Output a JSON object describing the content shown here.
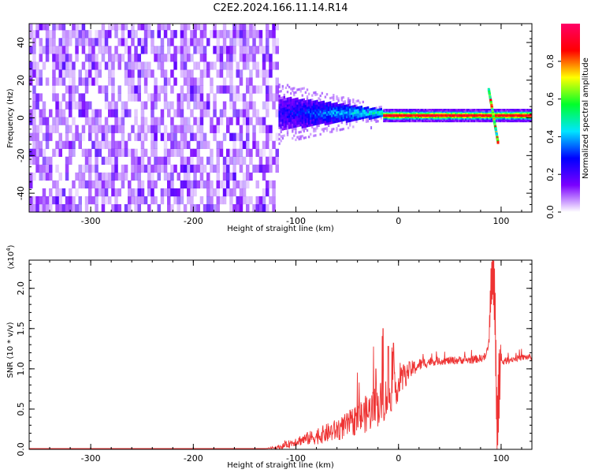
{
  "title": "C2E2.2024.166.11.14.R14",
  "chart_data": [
    {
      "type": "heatmap",
      "xlabel": "Height of straight line (km)",
      "ylabel": "Frequency (Hz)",
      "xlim": [
        -360,
        130
      ],
      "ylim": [
        -50,
        50
      ],
      "x_ticks": [
        -300,
        -200,
        -100,
        0,
        100
      ],
      "y_ticks": [
        -40,
        -20,
        0,
        20,
        40
      ],
      "x_tick_labels": [
        "-300",
        "-200",
        "-100",
        "0",
        "100"
      ],
      "y_tick_labels": [
        "-40",
        "-20",
        "0",
        "20",
        "40"
      ],
      "colorbar": {
        "label": "Normalized spectral amplitude",
        "range": [
          0,
          1
        ],
        "ticks": [
          0.0,
          0.2,
          0.4,
          0.6,
          0.8
        ],
        "tick_labels": [
          "0.0",
          "0.2",
          "0.4",
          "0.6",
          "0.8"
        ],
        "colors": [
          "#ffffff",
          "#7a00ff",
          "#0000ff",
          "#00e5ff",
          "#00ff2a",
          "#ffff00",
          "#ff0000",
          "#ff0066"
        ]
      },
      "regions": [
        {
          "x_range": [
            -360,
            -117
          ],
          "freq_range": [
            -50,
            50
          ],
          "amplitude": [
            0.05,
            0.2
          ],
          "texture": "uniform noise"
        },
        {
          "x_range": [
            -117,
            -15
          ],
          "freq_center": 2,
          "freq_halfwidth": [
            9,
            2
          ],
          "amplitude": [
            0.2,
            0.45
          ]
        },
        {
          "x_range": [
            -15,
            130
          ],
          "freq_center": 1,
          "freq_halfwidth": 2,
          "amplitude": [
            0.5,
            0.95
          ]
        },
        {
          "x_range": [
            88,
            97
          ],
          "freq_range": [
            -13,
            15
          ],
          "amplitude": [
            0.4,
            0.9
          ],
          "feature": "diagonal streak"
        }
      ]
    },
    {
      "type": "line",
      "xlabel": "Height of straight line (km)",
      "ylabel": "SNR (10 * v/v)",
      "y_multiplier": "(x10^4)",
      "y_multiplier_base": "(x10",
      "y_multiplier_exp": "4",
      "y_multiplier_close": ")",
      "xlim": [
        -360,
        130
      ],
      "ylim": [
        0,
        2.35
      ],
      "x_ticks": [
        -300,
        -200,
        -100,
        0,
        100
      ],
      "y_ticks": [
        0,
        0.5,
        1.0,
        1.5,
        2.0
      ],
      "x_tick_labels": [
        "-300",
        "-200",
        "-100",
        "0",
        "100"
      ],
      "y_tick_labels": [
        "0.0",
        "0.5",
        "1.0",
        "1.5",
        "2.0"
      ],
      "series": [
        {
          "color": "#ee3333",
          "x": [
            -360,
            -300,
            -200,
            -130,
            -115,
            -100,
            -90,
            -80,
            -70,
            -60,
            -50,
            -40,
            -30,
            -25,
            -20,
            -15,
            -10,
            -5,
            0,
            5,
            10,
            20,
            30,
            40,
            50,
            60,
            70,
            80,
            85,
            88,
            90,
            92,
            94,
            96,
            98,
            100,
            110,
            120,
            130
          ],
          "y": [
            0.01,
            0.01,
            0.01,
            0.01,
            0.03,
            0.1,
            0.13,
            0.16,
            0.2,
            0.24,
            0.3,
            0.38,
            0.45,
            0.5,
            0.55,
            0.6,
            0.66,
            0.72,
            0.8,
            0.88,
            0.97,
            1.05,
            1.09,
            1.1,
            1.1,
            1.11,
            1.11,
            1.13,
            1.15,
            1.3,
            2.0,
            2.2,
            1.8,
            0.2,
            0.8,
            1.08,
            1.12,
            1.14,
            1.15
          ],
          "spread": [
            0,
            0,
            0,
            0,
            0.03,
            0.06,
            0.08,
            0.1,
            0.12,
            0.14,
            0.16,
            0.2,
            0.24,
            0.26,
            0.28,
            0.28,
            0.25,
            0.22,
            0.2,
            0.16,
            0.12,
            0.08,
            0.06,
            0.05,
            0.05,
            0.05,
            0.05,
            0.05,
            0.05,
            0.1,
            0.3,
            0.3,
            0.4,
            0.3,
            0.4,
            0.05,
            0.04,
            0.04,
            0.04
          ],
          "peaks": [
            [
              -15,
              1.5
            ],
            [
              -10,
              1.28
            ],
            [
              -5,
              1.32
            ],
            [
              -22,
              1.0
            ],
            [
              5,
              1.05
            ]
          ]
        }
      ]
    }
  ]
}
